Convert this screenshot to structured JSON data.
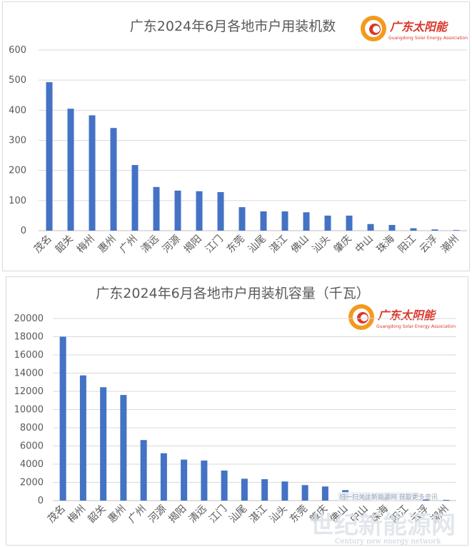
{
  "chart_data": [
    {
      "type": "bar",
      "title": "广东2024年6月各地市户用装机数",
      "categories": [
        "茂名",
        "韶关",
        "梅州",
        "惠州",
        "广州",
        "清远",
        "河源",
        "揭阳",
        "江门",
        "东莞",
        "汕尾",
        "湛江",
        "佛山",
        "汕头",
        "肇庆",
        "中山",
        "珠海",
        "阳江",
        "云浮",
        "潮州"
      ],
      "values": [
        493,
        405,
        383,
        341,
        218,
        145,
        133,
        131,
        128,
        78,
        64,
        64,
        61,
        50,
        50,
        22,
        19,
        8,
        4,
        2
      ],
      "ylim": [
        0,
        600
      ],
      "yticks": [
        "0",
        "100",
        "200",
        "300",
        "400",
        "500",
        "600"
      ],
      "grid": true,
      "bar_color": "#4472c4",
      "xlabel": "",
      "ylabel": ""
    },
    {
      "type": "bar",
      "title": "广东2024年6月各地市户用装机容量（千瓦）",
      "categories": [
        "茂名",
        "梅州",
        "韶关",
        "惠州",
        "广州",
        "河源",
        "揭阳",
        "清远",
        "江门",
        "汕尾",
        "湛江",
        "汕头",
        "东莞",
        "肇庆",
        "佛山",
        "中山",
        "珠海",
        "阳江",
        "云浮",
        "潮州"
      ],
      "values": [
        18000,
        13750,
        12450,
        11600,
        6650,
        5200,
        4500,
        4400,
        3300,
        2400,
        2350,
        2100,
        1700,
        1550,
        1150,
        600,
        450,
        250,
        120,
        80
      ],
      "ylim": [
        0,
        20000
      ],
      "yticks": [
        "0",
        "2000",
        "4000",
        "6000",
        "8000",
        "10000",
        "12000",
        "14000",
        "16000",
        "18000",
        "20000"
      ],
      "grid": true,
      "bar_color": "#4472c4",
      "xlabel": "",
      "ylabel": ""
    }
  ],
  "logo": {
    "name": "广东太阳能",
    "subtitle": "Guangdong Solar Energy Association",
    "colors": {
      "outer": "#f39a1e",
      "inner": "#d9362b"
    }
  },
  "watermark": {
    "cn": "世纪新能源网",
    "en": "Century new energy network",
    "banner": "扫一扫关注新能源网  获取更多资讯"
  }
}
